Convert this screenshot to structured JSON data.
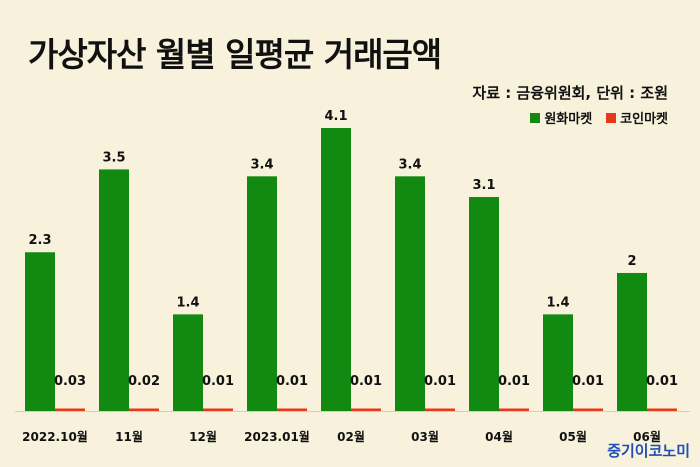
{
  "page": {
    "title": "가상자산 월별 일평균 거래금액",
    "source": "자료 : 금융위원회, 단위 : 조원",
    "brand": "중기이코노미"
  },
  "chart_data": {
    "type": "bar",
    "title": "가상자산 월별 일평균 거래금액",
    "ylabel": "",
    "xlabel": "",
    "ylim": [
      0,
      4.5
    ],
    "grid": false,
    "legend_position": "top-right",
    "categories": [
      "2022.10월",
      "11월",
      "12월",
      "2023.01월",
      "02월",
      "03월",
      "04월",
      "05월",
      "06월"
    ],
    "series": [
      {
        "name": "원화마켓",
        "color": "#128a12",
        "values": [
          2.3,
          3.5,
          1.4,
          3.4,
          4.1,
          3.4,
          3.1,
          1.4,
          2
        ],
        "labels": [
          "2.3",
          "3.5",
          "1.4",
          "3.4",
          "4.1",
          "3.4",
          "3.1",
          "1.4",
          "2"
        ]
      },
      {
        "name": "코인마켓",
        "color": "#e8381a",
        "values": [
          0.03,
          0.02,
          0.01,
          0.01,
          0.01,
          0.01,
          0.01,
          0.01,
          0.01
        ],
        "labels": [
          "0.03",
          "0.02",
          "0.01",
          "0.01",
          "0.01",
          "0.01",
          "0.01",
          "0.01",
          "0.01"
        ]
      }
    ]
  }
}
